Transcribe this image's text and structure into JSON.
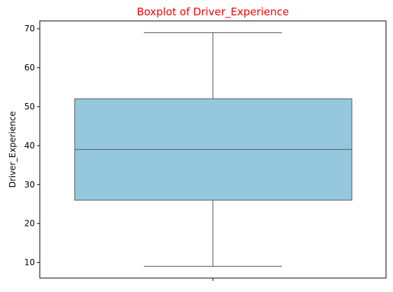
{
  "chart_data": {
    "type": "box",
    "title": "Boxplot of Driver_Experience",
    "title_color": "#ff0000",
    "xlabel": "",
    "ylabel": "Driver_Experience",
    "ylim": [
      6.0,
      72.0
    ],
    "yticks": [
      10,
      20,
      30,
      40,
      50,
      60,
      70
    ],
    "grid": false,
    "box": {
      "whisker_low": 9,
      "q1": 26,
      "median": 39,
      "q3": 52,
      "whisker_high": 69
    },
    "colors": {
      "box_fill": "#95c8de",
      "line": "#6b6b6b",
      "axes": "#000000"
    }
  }
}
